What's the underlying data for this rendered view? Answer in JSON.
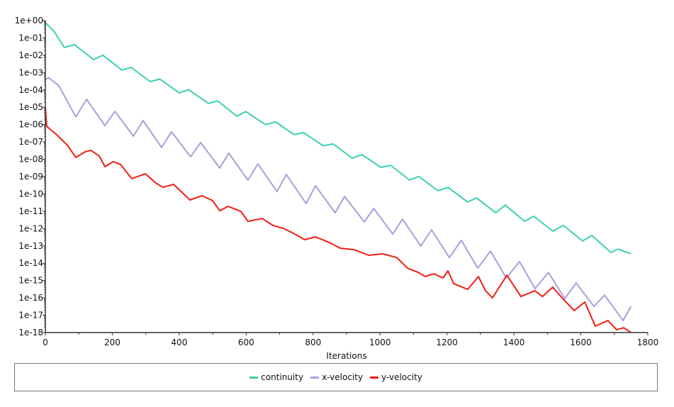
{
  "chart_data": {
    "type": "line",
    "title": "",
    "xlabel": "Iterations",
    "ylabel": "",
    "xlim": [
      0,
      1800
    ],
    "ylim_log10": [
      -18,
      0
    ],
    "yscale": "log",
    "x_ticks": [
      "0",
      "200",
      "400",
      "600",
      "800",
      "1000",
      "1200",
      "1400",
      "1600",
      "1800"
    ],
    "y_ticks": [
      "1e+00",
      "1e-01",
      "1e-02",
      "1e-03",
      "1e-04",
      "1e-05",
      "1e-06",
      "1e-07",
      "1e-08",
      "1e-09",
      "1e-10",
      "1e-11",
      "1e-12",
      "1e-13",
      "1e-14",
      "1e-15",
      "1e-16",
      "1e-17",
      "1e-18"
    ],
    "grid": false,
    "legend_position": "bottom",
    "series": [
      {
        "name": "continuity",
        "color": "#3ecfb2",
        "x": [
          0,
          25,
          57,
          87,
          144,
          172,
          229,
          256,
          313,
          342,
          400,
          428,
          487,
          515,
          572,
          599,
          657,
          688,
          743,
          771,
          830,
          860,
          917,
          946,
          1002,
          1032,
          1088,
          1116,
          1173,
          1203,
          1262,
          1288,
          1346,
          1374,
          1432,
          1459,
          1516,
          1548,
          1605,
          1633,
          1690,
          1711,
          1750
        ],
        "y_log10": [
          -0.12,
          -0.6,
          -1.55,
          -1.39,
          -2.25,
          -2.0,
          -2.86,
          -2.7,
          -3.52,
          -3.38,
          -4.17,
          -3.99,
          -4.78,
          -4.64,
          -5.52,
          -5.25,
          -6.0,
          -5.85,
          -6.58,
          -6.46,
          -7.22,
          -7.12,
          -7.94,
          -7.73,
          -8.47,
          -8.35,
          -9.2,
          -8.99,
          -9.82,
          -9.62,
          -10.47,
          -10.23,
          -11.09,
          -10.64,
          -11.58,
          -11.29,
          -12.15,
          -11.82,
          -12.72,
          -12.4,
          -13.38,
          -13.18,
          -13.46
        ]
      },
      {
        "name": "x-velocity",
        "color": "#a99fdc",
        "x": [
          0,
          10,
          40,
          91,
          123,
          178,
          208,
          263,
          292,
          347,
          377,
          434,
          464,
          521,
          548,
          605,
          635,
          692,
          720,
          779,
          807,
          866,
          894,
          953,
          981,
          1038,
          1067,
          1122,
          1154,
          1207,
          1243,
          1292,
          1330,
          1377,
          1417,
          1463,
          1503,
          1552,
          1586,
          1639,
          1671,
          1726,
          1750
        ],
        "y_log10": [
          -3.4,
          -3.3,
          -3.75,
          -5.56,
          -4.54,
          -6.06,
          -5.24,
          -6.67,
          -5.77,
          -7.32,
          -6.42,
          -7.86,
          -7.04,
          -8.51,
          -7.65,
          -9.21,
          -8.27,
          -9.86,
          -8.88,
          -10.56,
          -9.53,
          -11.09,
          -10.15,
          -11.62,
          -10.84,
          -12.32,
          -11.46,
          -13.01,
          -12.07,
          -13.67,
          -12.68,
          -14.28,
          -13.3,
          -14.85,
          -13.91,
          -15.47,
          -14.53,
          -16.04,
          -15.14,
          -16.49,
          -15.84,
          -17.31,
          -16.49
        ]
      },
      {
        "name": "y-velocity",
        "color": "#f01e12",
        "x": [
          0,
          4,
          34,
          66,
          91,
          119,
          136,
          161,
          178,
          203,
          225,
          258,
          299,
          330,
          351,
          383,
          432,
          468,
          500,
          521,
          546,
          584,
          605,
          648,
          680,
          711,
          737,
          775,
          807,
          849,
          881,
          923,
          966,
          1008,
          1050,
          1082,
          1114,
          1135,
          1161,
          1188,
          1203,
          1220,
          1262,
          1294,
          1315,
          1336,
          1379,
          1421,
          1463,
          1485,
          1516,
          1548,
          1580,
          1612,
          1643,
          1681,
          1707,
          1728,
          1750
        ],
        "y_log10": [
          -5.0,
          -6.1,
          -6.59,
          -7.2,
          -7.9,
          -7.57,
          -7.49,
          -7.81,
          -8.43,
          -8.14,
          -8.31,
          -9.12,
          -8.84,
          -9.37,
          -9.62,
          -9.45,
          -10.35,
          -10.11,
          -10.39,
          -10.97,
          -10.72,
          -11.01,
          -11.58,
          -11.42,
          -11.82,
          -11.99,
          -12.23,
          -12.64,
          -12.48,
          -12.81,
          -13.13,
          -13.22,
          -13.54,
          -13.46,
          -13.67,
          -14.28,
          -14.53,
          -14.77,
          -14.61,
          -14.85,
          -14.44,
          -15.18,
          -15.51,
          -14.77,
          -15.59,
          -16.0,
          -14.69,
          -15.92,
          -15.59,
          -15.92,
          -15.38,
          -16.08,
          -16.73,
          -16.24,
          -17.63,
          -17.31,
          -17.84,
          -17.72,
          -18.0
        ]
      }
    ]
  }
}
